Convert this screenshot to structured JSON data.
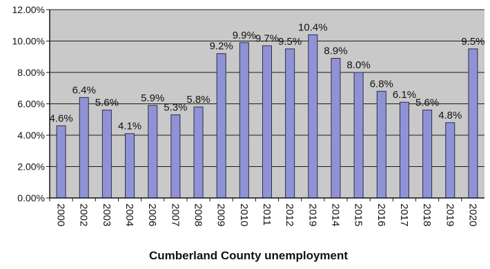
{
  "chart_data": {
    "type": "bar",
    "title": "",
    "xlabel": "Cumberland County unemployment",
    "ylabel": "",
    "ylim": [
      0,
      12
    ],
    "yticks": [
      "0.00%",
      "2.00%",
      "4.00%",
      "6.00%",
      "8.00%",
      "10.00%",
      "12.00%"
    ],
    "grid": "horizontal",
    "legend": "none",
    "categories": [
      "2000",
      "2002",
      "2003",
      "2004",
      "2006",
      "2007",
      "2008",
      "2009",
      "2010",
      "2011",
      "2012",
      "2019",
      "2014",
      "2015",
      "2016",
      "2017",
      "2018",
      "2019",
      "2020"
    ],
    "values": [
      4.6,
      6.4,
      5.6,
      4.1,
      5.9,
      5.3,
      5.8,
      9.2,
      9.9,
      9.7,
      9.5,
      10.4,
      8.9,
      8.0,
      6.8,
      6.1,
      5.6,
      4.8,
      9.5
    ],
    "labels": [
      "4.6%",
      "6.4%",
      "5.6%",
      "4.1%",
      "5.9%",
      "5.3%",
      "5.8%",
      "9.2%",
      "9.9%",
      "9.7%",
      "9.5%",
      "10.4%",
      "8.9%",
      "8.0%",
      "6.8%",
      "6.1%",
      "5.6%",
      "4.8%",
      "9.5%"
    ],
    "colors": {
      "bar_fill": "#8f93d6",
      "bar_stroke": "#2b2b44",
      "plot_bg": "#c9c9c9",
      "grid": "#1a1a1a"
    }
  }
}
